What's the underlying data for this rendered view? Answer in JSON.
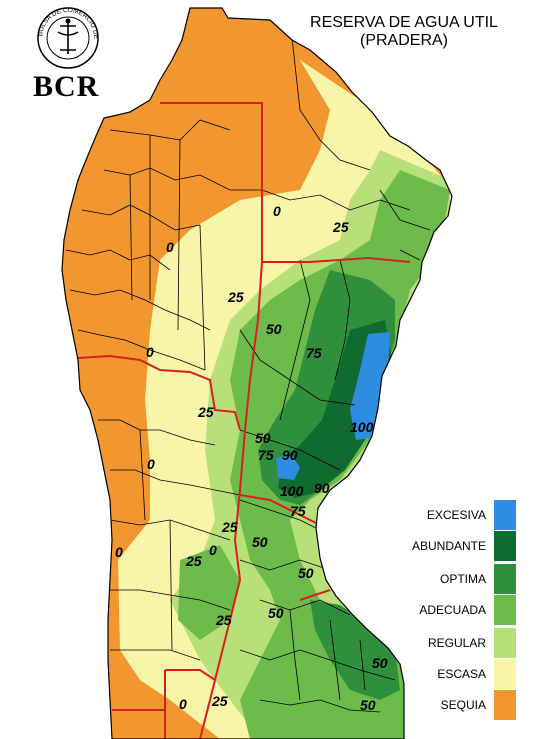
{
  "title_line1": "RESERVA DE AGUA UTIL",
  "title_line2": "(PRADERA)",
  "logo": {
    "text": "BCR",
    "ring_text": "BOLSA DE COMERCIO DE ROSARIO"
  },
  "legend": [
    {
      "label": "EXCESIVA",
      "color": "#2e8de0"
    },
    {
      "label": "ABUNDANTE",
      "color": "#0f6b2f"
    },
    {
      "label": "OPTIMA",
      "color": "#2f8f3c"
    },
    {
      "label": "ADECUADA",
      "color": "#6dbb4a"
    },
    {
      "label": "REGULAR",
      "color": "#b8e07a"
    },
    {
      "label": "ESCASA",
      "color": "#f8f5a8"
    },
    {
      "label": "SEQUIA",
      "color": "#f2962f"
    }
  ],
  "contour_labels": [
    "0",
    "0",
    "0",
    "0",
    "0",
    "0",
    "0",
    "25",
    "25",
    "25",
    "25",
    "25",
    "25",
    "25",
    "50",
    "50",
    "50",
    "50",
    "50",
    "50",
    "50",
    "75",
    "75",
    "75",
    "90",
    "90",
    "100",
    "100"
  ]
}
